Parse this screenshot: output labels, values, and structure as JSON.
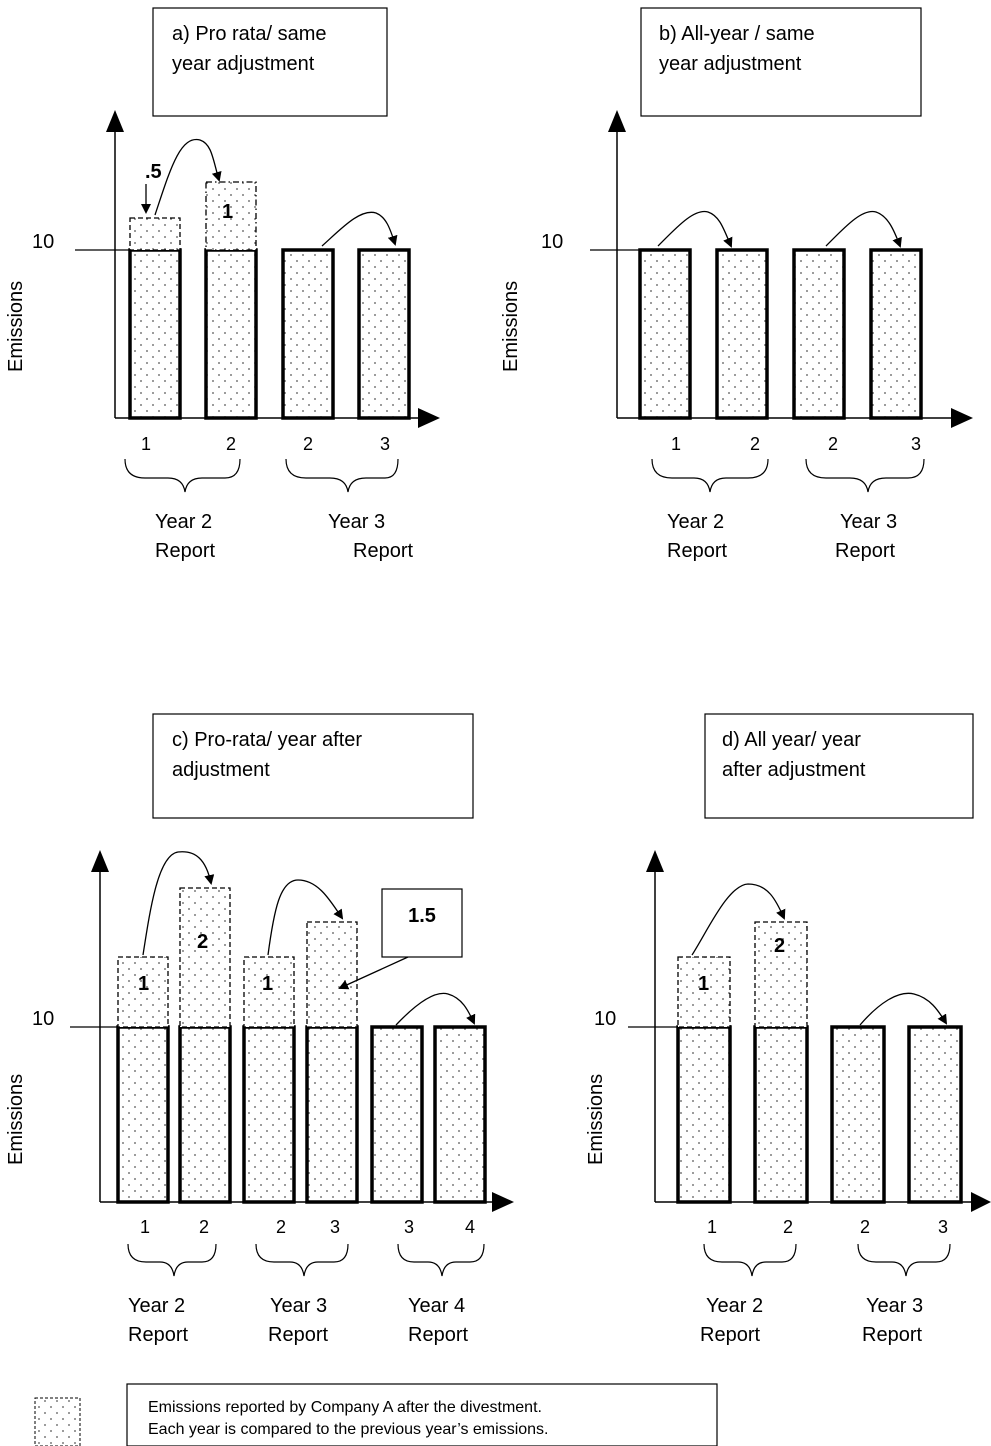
{
  "panels": {
    "a": {
      "title_line1": "a) Pro rata/ same",
      "title_line2": "year adjustment",
      "ylabel": "Emissions",
      "ref_value": "10",
      "ext_labels": [
        ".5",
        "1"
      ],
      "ticks": [
        "1",
        "2",
        "2",
        "3"
      ],
      "groups": [
        {
          "line1": "Year 2",
          "line2": "Report"
        },
        {
          "line1": "Year 3",
          "line2": "Report"
        }
      ]
    },
    "b": {
      "title_line1": "b) All-year / same",
      "title_line2": "year adjustment",
      "ylabel": "Emissions",
      "ref_value": "10",
      "ticks": [
        "1",
        "2",
        "2",
        "3"
      ],
      "groups": [
        {
          "line1": "Year 2",
          "line2": "Report"
        },
        {
          "line1": "Year 3",
          "line2": "Report"
        }
      ]
    },
    "c": {
      "title_line1": "c) Pro-rata/ year after",
      "title_line2": "adjustment",
      "ylabel": "Emissions",
      "ref_value": "10",
      "ext_labels": [
        "1",
        "2",
        "1"
      ],
      "callout": "1.5",
      "ticks": [
        "1",
        "2",
        "2",
        "3",
        "3",
        "4"
      ],
      "groups": [
        {
          "line1": "Year 2",
          "line2": "Report"
        },
        {
          "line1": "Year 3",
          "line2": "Report"
        },
        {
          "line1": "Year 4",
          "line2": "Report"
        }
      ]
    },
    "d": {
      "title_line1": "d) All year/ year",
      "title_line2": "after adjustment",
      "ylabel": "Emissions",
      "ref_value": "10",
      "ext_labels": [
        "1",
        "2"
      ],
      "ticks": [
        "1",
        "2",
        "2",
        "3"
      ],
      "groups": [
        {
          "line1": "Year 2",
          "line2": "Report"
        },
        {
          "line1": "Year 3",
          "line2": "Report"
        }
      ]
    }
  },
  "legend": {
    "line1": "Emissions reported by Company A after the divestment.",
    "line2": "Each year is compared to the previous year’s emissions."
  }
}
